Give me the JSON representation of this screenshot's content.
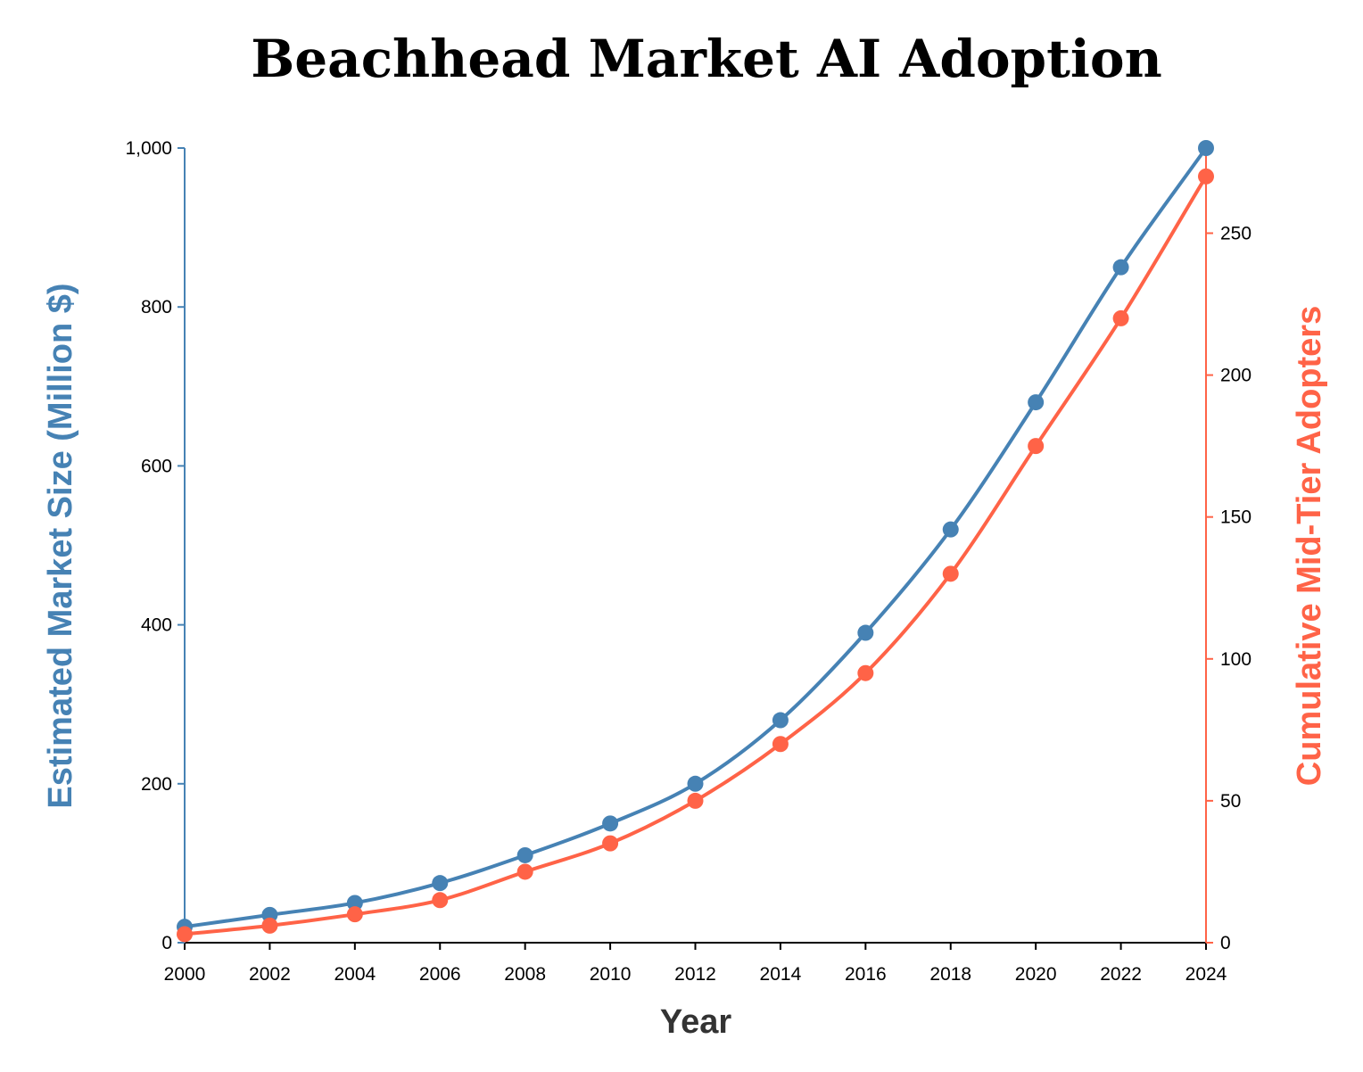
{
  "chart_data": {
    "type": "line",
    "title": "Beachhead Market AI Adoption",
    "xlabel": "Year",
    "x": [
      2000,
      2002,
      2004,
      2006,
      2008,
      2010,
      2012,
      2014,
      2016,
      2018,
      2020,
      2022,
      2024
    ],
    "xticks": [
      "2000",
      "2002",
      "2004",
      "2006",
      "2008",
      "2010",
      "2012",
      "2014",
      "2016",
      "2018",
      "2020",
      "2022",
      "2024"
    ],
    "xlim": [
      2000,
      2024
    ],
    "y_left": {
      "label": "Estimated Market Size (Million $)",
      "ylim": [
        0,
        1000
      ],
      "ticks": [
        0,
        200,
        400,
        600,
        800,
        1000
      ],
      "tick_labels": [
        "0",
        "200",
        "400",
        "600",
        "800",
        "1,000"
      ],
      "color": "#4682b4"
    },
    "y_right": {
      "label": "Cumulative Mid-Tier Adopters",
      "ylim": [
        0,
        280
      ],
      "ticks": [
        0,
        50,
        100,
        150,
        200,
        250
      ],
      "tick_labels": [
        "0",
        "50",
        "100",
        "150",
        "200",
        "250"
      ],
      "color": "#ff6347"
    },
    "series": [
      {
        "axis": "left",
        "color": "#4682b4",
        "values": [
          20,
          35,
          50,
          75,
          110,
          150,
          200,
          280,
          390,
          520,
          680,
          850,
          1000
        ]
      },
      {
        "axis": "right",
        "color": "#ff6347",
        "values": [
          3,
          6,
          10,
          15,
          25,
          35,
          50,
          70,
          95,
          130,
          175,
          220,
          270
        ]
      }
    ],
    "grid": false,
    "legend": "none",
    "curve": "smooth"
  }
}
